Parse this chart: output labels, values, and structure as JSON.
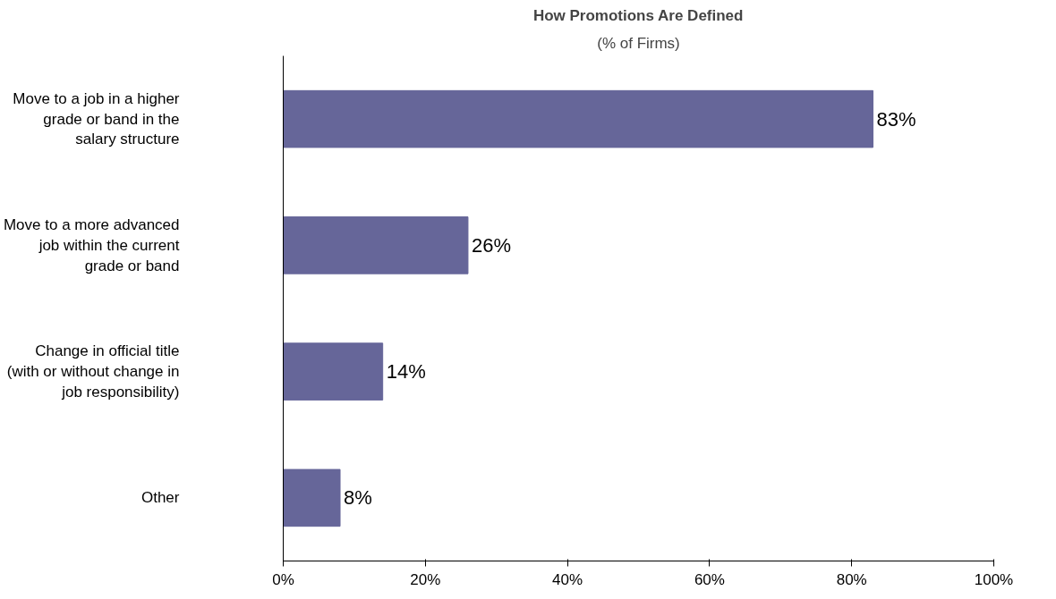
{
  "chart_data": {
    "type": "bar",
    "orientation": "horizontal",
    "title": "How Promotions Are Defined",
    "subtitle": "(% of Firms)",
    "categories": [
      "Move to a job in a higher\ngrade or band in the\nsalary structure",
      "Move to a more advanced\njob within the current\ngrade or band",
      "Change in official title\n(with or without change in\njob responsibility)",
      "Other"
    ],
    "values": [
      83,
      26,
      14,
      8
    ],
    "value_labels": [
      "83%",
      "26%",
      "14%",
      "8%"
    ],
    "color": "#666699",
    "xlim": [
      0,
      100
    ],
    "xticks": [
      {
        "value": 0,
        "label": "0%"
      },
      {
        "value": 20,
        "label": "20%"
      },
      {
        "value": 40,
        "label": "40%"
      },
      {
        "value": 60,
        "label": "60%"
      },
      {
        "value": 80,
        "label": "80%"
      },
      {
        "value": 100,
        "label": "100%"
      }
    ],
    "grid": false
  }
}
